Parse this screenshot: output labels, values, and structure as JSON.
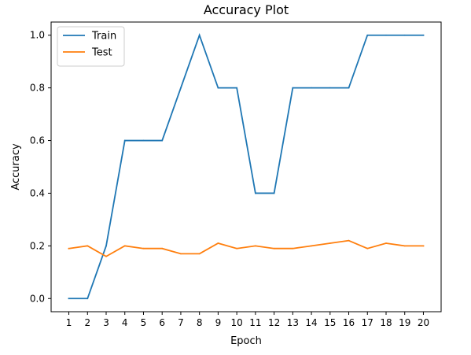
{
  "chart_data": {
    "type": "line",
    "title": "Accuracy Plot",
    "xlabel": "Epoch",
    "ylabel": "Accuracy",
    "x": [
      1,
      2,
      3,
      4,
      5,
      6,
      7,
      8,
      9,
      10,
      11,
      12,
      13,
      14,
      15,
      16,
      17,
      18,
      19,
      20
    ],
    "xticks": [
      "1",
      "2",
      "3",
      "4",
      "5",
      "6",
      "7",
      "8",
      "9",
      "10",
      "11",
      "12",
      "13",
      "14",
      "15",
      "16",
      "17",
      "18",
      "19",
      "20"
    ],
    "yticks": [
      "0.0",
      "0.2",
      "0.4",
      "0.6",
      "0.8",
      "1.0"
    ],
    "ytick_values": [
      0.0,
      0.2,
      0.4,
      0.6,
      0.8,
      1.0
    ],
    "xlim": [
      0.05,
      20.95
    ],
    "ylim": [
      -0.05,
      1.05
    ],
    "grid": false,
    "legend_position": "upper-left",
    "series": [
      {
        "name": "Train",
        "color": "#1f77b4",
        "values": [
          0.0,
          0.0,
          0.2,
          0.6,
          0.6,
          0.6,
          0.8,
          1.0,
          0.8,
          0.8,
          0.4,
          0.4,
          0.8,
          0.8,
          0.8,
          0.8,
          1.0,
          1.0,
          1.0,
          1.0
        ]
      },
      {
        "name": "Test",
        "color": "#ff7f0e",
        "values": [
          0.19,
          0.2,
          0.16,
          0.2,
          0.19,
          0.19,
          0.17,
          0.17,
          0.21,
          0.19,
          0.2,
          0.19,
          0.19,
          0.2,
          0.21,
          0.22,
          0.19,
          0.21,
          0.2,
          0.2
        ]
      }
    ]
  }
}
